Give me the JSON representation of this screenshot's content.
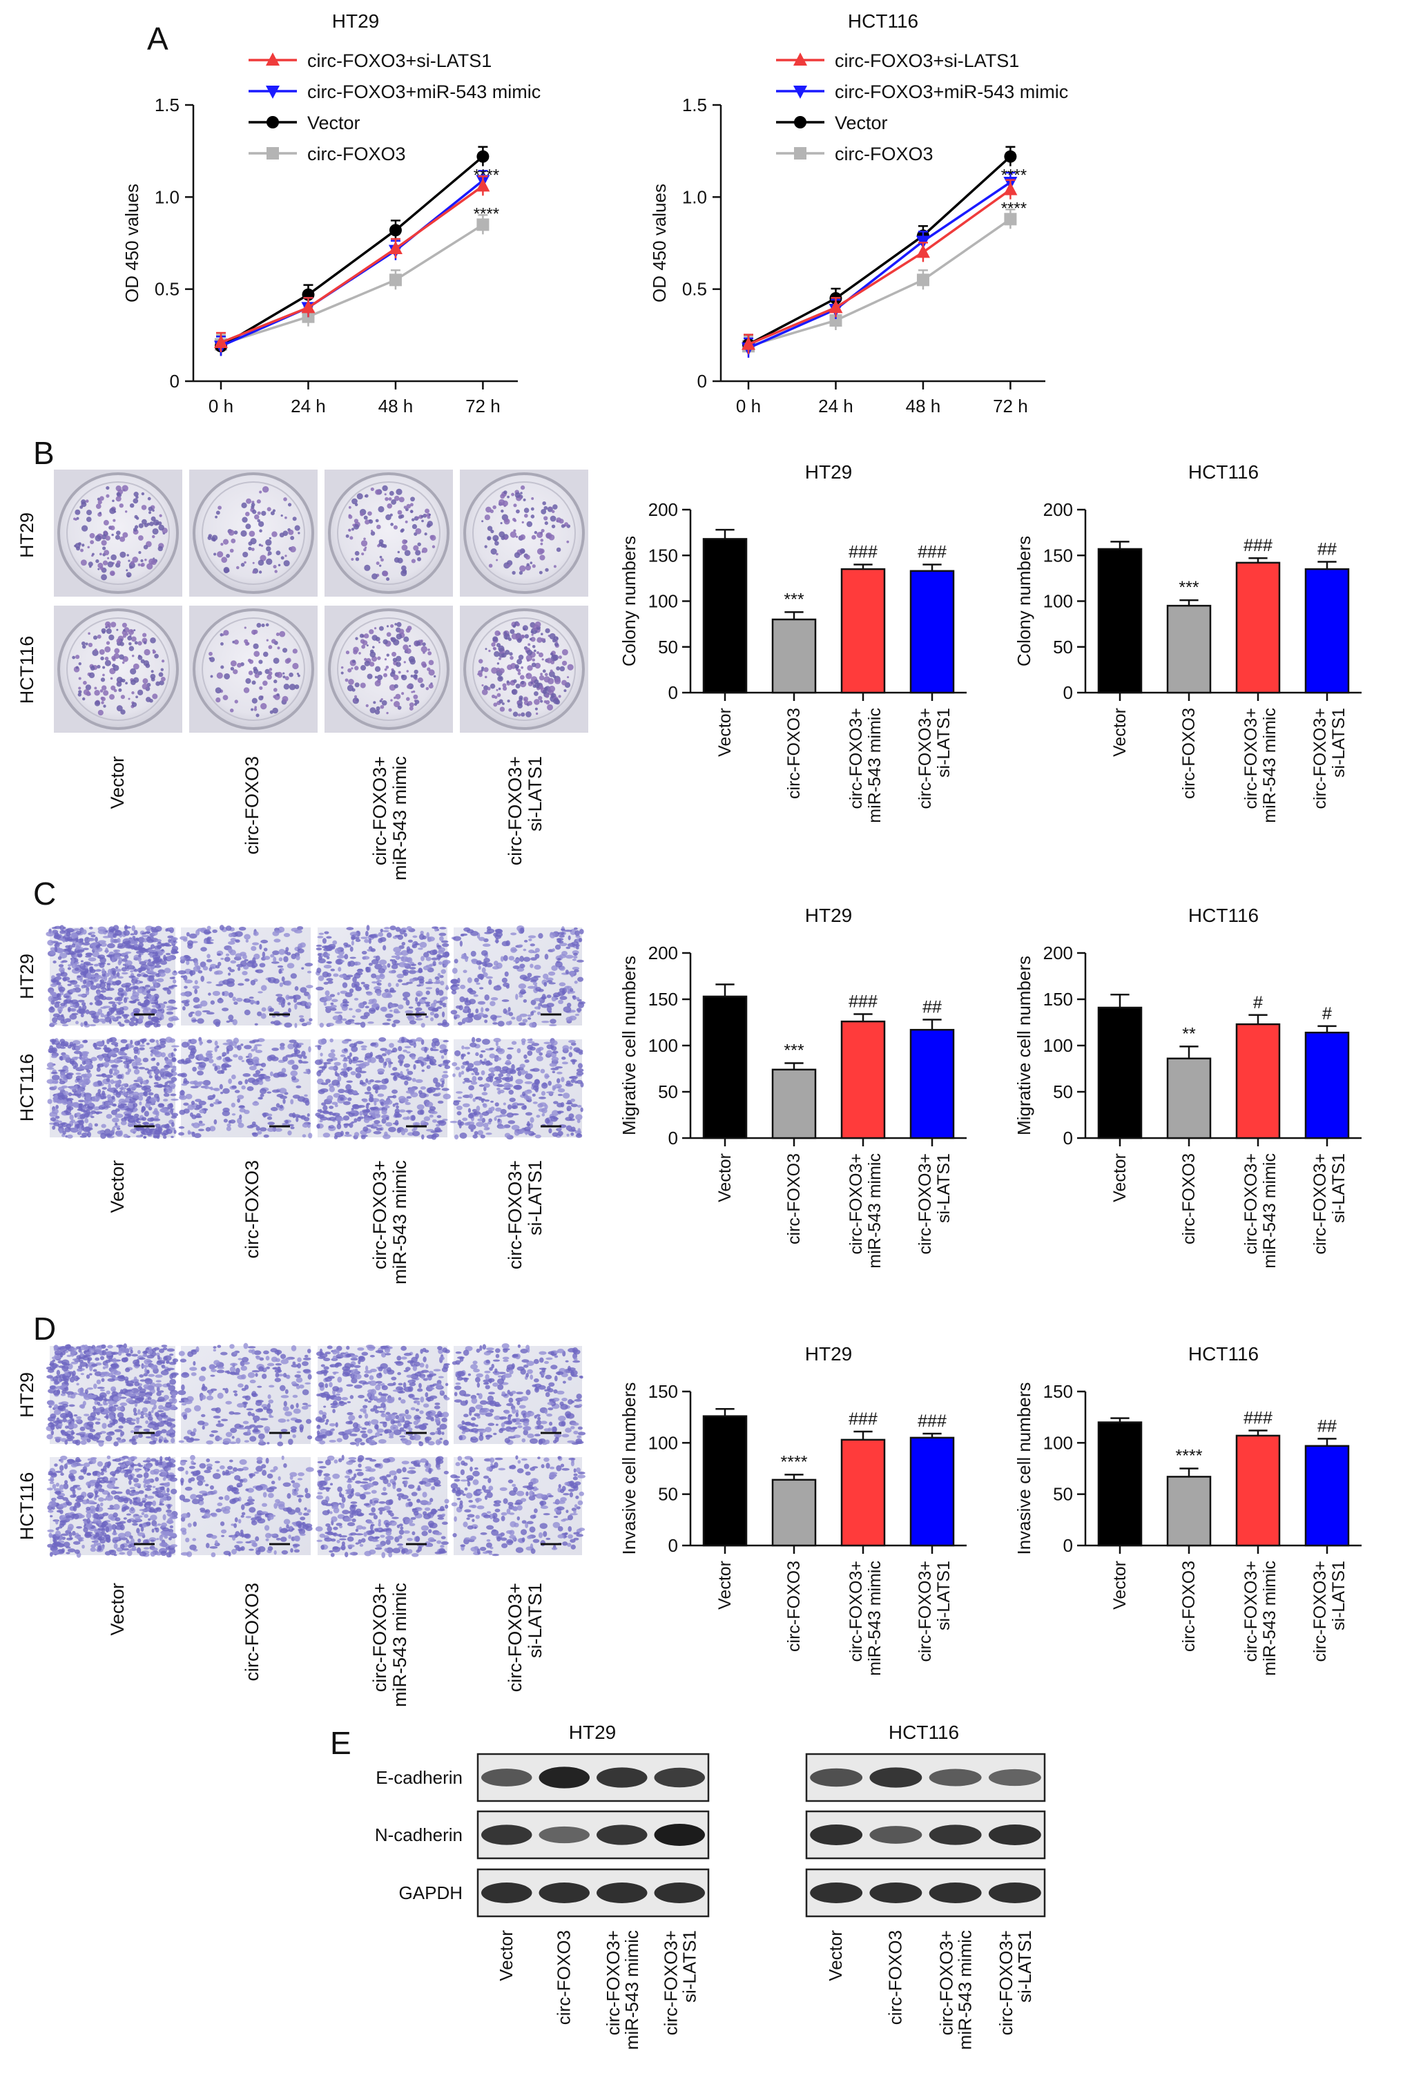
{
  "panel_labels": {
    "A": "A",
    "B": "B",
    "C": "C",
    "D": "D",
    "E": "E"
  },
  "colors": {
    "vector": "#000000",
    "circ_foxo3": "#a6a6a6",
    "mimic": "#ff3b3b",
    "si_lats1": "#0000ff",
    "line_si": "#ef3b3b",
    "line_mimic": "#1a1aff",
    "line_vector": "#000000",
    "line_circ": "#b4b4b4",
    "stain": "#7c74c8"
  },
  "line_legend": [
    "circ-FOXO3+si-LATS1",
    "circ-FOXO3+miR-543 mimic",
    "Vector",
    "circ-FOXO3"
  ],
  "image_groups": [
    "Vector",
    "circ-FOXO3",
    "circ-FOXO3+\nmiR-543 mimic",
    "circ-FOXO3+\nsi-LATS1"
  ],
  "image_rows": [
    "HT29",
    "HCT116"
  ],
  "blot": {
    "lines": [
      "HT29",
      "HCT116"
    ],
    "proteins": [
      "E-cadherin",
      "N-cadherin",
      "GAPDH"
    ],
    "lanes": [
      "Vector",
      "circ-FOXO3",
      "circ-FOXO3+\nmiR-543 mimic",
      "circ-FOXO3+\nsi-LATS1"
    ]
  },
  "chart_data": [
    {
      "type": "line",
      "panel": "A",
      "title": "HT29",
      "ylabel": "OD 450 values",
      "categories": [
        "0 h",
        "24 h",
        "48 h",
        "72 h"
      ],
      "ylim": [
        0,
        1.5
      ],
      "yticks": [
        "0",
        "0.5",
        "1.0",
        "1.5"
      ],
      "series": [
        {
          "name": "circ-FOXO3+si-LATS1",
          "values": [
            0.21,
            0.4,
            0.72,
            1.06
          ]
        },
        {
          "name": "circ-FOXO3+miR-543 mimic",
          "values": [
            0.19,
            0.4,
            0.71,
            1.09
          ]
        },
        {
          "name": "Vector",
          "values": [
            0.19,
            0.47,
            0.82,
            1.22
          ]
        },
        {
          "name": "circ-FOXO3",
          "values": [
            0.2,
            0.35,
            0.55,
            0.85
          ]
        }
      ],
      "annotations": [
        "****",
        "****"
      ]
    },
    {
      "type": "line",
      "panel": "A",
      "title": "HCT116",
      "ylabel": "OD 450 values",
      "categories": [
        "0 h",
        "24 h",
        "48 h",
        "72 h"
      ],
      "ylim": [
        0,
        1.5
      ],
      "yticks": [
        "0",
        "0.5",
        "1.0",
        "1.5"
      ],
      "series": [
        {
          "name": "circ-FOXO3+si-LATS1",
          "values": [
            0.2,
            0.4,
            0.7,
            1.04
          ]
        },
        {
          "name": "circ-FOXO3+miR-543 mimic",
          "values": [
            0.18,
            0.39,
            0.76,
            1.08
          ]
        },
        {
          "name": "Vector",
          "values": [
            0.2,
            0.45,
            0.79,
            1.22
          ]
        },
        {
          "name": "circ-FOXO3",
          "values": [
            0.19,
            0.33,
            0.55,
            0.88
          ]
        }
      ],
      "annotations": [
        "****",
        "****"
      ]
    },
    {
      "type": "bar",
      "panel": "B",
      "title": "HT29",
      "ylabel": "Colony numbers",
      "categories": [
        "Vector",
        "circ-FOXO3",
        "circ-FOXO3+\nmiR-543 mimic",
        "circ-FOXO3+\nsi-LATS1"
      ],
      "values": [
        168,
        80,
        135,
        133
      ],
      "errors": [
        10,
        8,
        5,
        7
      ],
      "ylim": [
        0,
        200
      ],
      "yticks": [
        "0",
        "50",
        "100",
        "150",
        "200"
      ],
      "annotations": [
        "",
        "***",
        "###",
        "###"
      ]
    },
    {
      "type": "bar",
      "panel": "B",
      "title": "HCT116",
      "ylabel": "Colony numbers",
      "categories": [
        "Vector",
        "circ-FOXO3",
        "circ-FOXO3+\nmiR-543 mimic",
        "circ-FOXO3+\nsi-LATS1"
      ],
      "values": [
        157,
        95,
        142,
        135
      ],
      "errors": [
        8,
        6,
        5,
        8
      ],
      "ylim": [
        0,
        200
      ],
      "yticks": [
        "0",
        "50",
        "100",
        "150",
        "200"
      ],
      "annotations": [
        "",
        "***",
        "###",
        "##"
      ]
    },
    {
      "type": "bar",
      "panel": "C",
      "title": "HT29",
      "ylabel": "Migrative cell numbers",
      "categories": [
        "Vector",
        "circ-FOXO3",
        "circ-FOXO3+\nmiR-543 mimic",
        "circ-FOXO3+\nsi-LATS1"
      ],
      "values": [
        153,
        74,
        126,
        117
      ],
      "errors": [
        13,
        7,
        8,
        11
      ],
      "ylim": [
        0,
        200
      ],
      "yticks": [
        "0",
        "50",
        "100",
        "150",
        "200"
      ],
      "annotations": [
        "",
        "***",
        "###",
        "##"
      ]
    },
    {
      "type": "bar",
      "panel": "C",
      "title": "HCT116",
      "ylabel": "Migrative cell numbers",
      "categories": [
        "Vector",
        "circ-FOXO3",
        "circ-FOXO3+\nmiR-543 mimic",
        "circ-FOXO3+\nsi-LATS1"
      ],
      "values": [
        141,
        86,
        123,
        114
      ],
      "errors": [
        14,
        13,
        10,
        7
      ],
      "ylim": [
        0,
        200
      ],
      "yticks": [
        "0",
        "50",
        "100",
        "150",
        "200"
      ],
      "annotations": [
        "",
        "**",
        "#",
        "#"
      ]
    },
    {
      "type": "bar",
      "panel": "D",
      "title": "HT29",
      "ylabel": "Invasive cell numbers",
      "categories": [
        "Vector",
        "circ-FOXO3",
        "circ-FOXO3+\nmiR-543 mimic",
        "circ-FOXO3+\nsi-LATS1"
      ],
      "values": [
        126,
        64,
        103,
        105
      ],
      "errors": [
        7,
        5,
        8,
        4
      ],
      "ylim": [
        0,
        150
      ],
      "yticks": [
        "0",
        "50",
        "100",
        "150"
      ],
      "annotations": [
        "",
        "****",
        "###",
        "###"
      ]
    },
    {
      "type": "bar",
      "panel": "D",
      "title": "HCT116",
      "ylabel": "Invasive cell numbers",
      "categories": [
        "Vector",
        "circ-FOXO3",
        "circ-FOXO3+\nmiR-543 mimic",
        "circ-FOXO3+\nsi-LATS1"
      ],
      "values": [
        120,
        67,
        107,
        97
      ],
      "errors": [
        4,
        8,
        5,
        7
      ],
      "ylim": [
        0,
        150
      ],
      "yticks": [
        "0",
        "50",
        "100",
        "150"
      ],
      "annotations": [
        "",
        "****",
        "###",
        "##"
      ]
    }
  ]
}
